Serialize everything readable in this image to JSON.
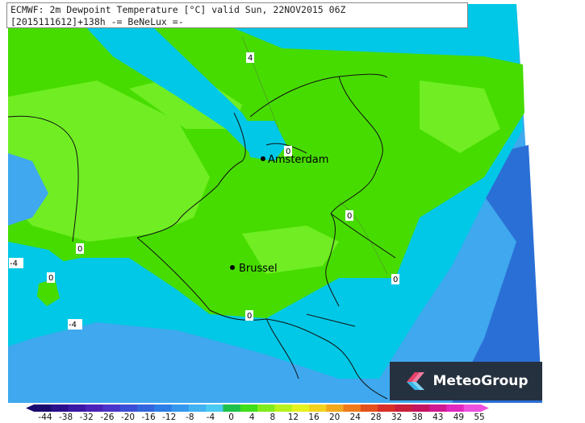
{
  "header": {
    "line1": "ECMWF: 2m Dewpoint Temperature [°C] valid Sun, 22NOV2015 06Z",
    "line2": "[2015111612]+138h -= BeNeLux =-"
  },
  "cities": [
    {
      "name": "Amsterdam"
    },
    {
      "name": "Brussel"
    }
  ],
  "contour_labels": [
    "4",
    "0",
    "0",
    "0",
    "0",
    "0",
    "0",
    "-4",
    "0",
    "-4"
  ],
  "legend": {
    "ticks": [
      "-44",
      "-38",
      "-32",
      "-26",
      "-20",
      "-16",
      "-12",
      "-8",
      "-4",
      "0",
      "4",
      "8",
      "12",
      "16",
      "20",
      "24",
      "28",
      "32",
      "38",
      "43",
      "49",
      "55"
    ],
    "colors": [
      "#1a0a6e",
      "#2a0f8a",
      "#3a17a4",
      "#4a22b8",
      "#4a33c8",
      "#3b4fd6",
      "#3365dd",
      "#2c7de6",
      "#3498ef",
      "#41b3f3",
      "#4ac9f2",
      "#1cc04a",
      "#3fdd1a",
      "#7fea1c",
      "#b8f21e",
      "#e6f21e",
      "#f2d21e",
      "#f2a81c",
      "#ee7a1a",
      "#e4501c",
      "#d82e28",
      "#c81e3c",
      "#c41460",
      "#d01890",
      "#e028c0",
      "#f050e0"
    ],
    "color_dark_blue": "#2a6fd6",
    "color_mid_blue": "#3fa8ee",
    "color_cyan": "#00c8e6",
    "color_green": "#47dc00",
    "color_light_green": "#70ee23"
  },
  "logo": {
    "text": "MeteoGroup"
  }
}
